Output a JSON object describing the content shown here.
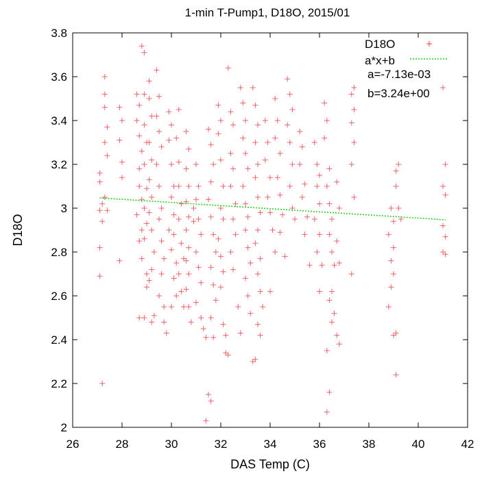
{
  "chart_data": {
    "type": "scatter",
    "title": "1-min T-Pump1, D18O, 2015/01",
    "xlabel": "DAS Temp (C)",
    "ylabel": "D18O",
    "xlim": [
      26,
      42
    ],
    "ylim": [
      2,
      3.8
    ],
    "xticks": [
      "26",
      "28",
      "30",
      "32",
      "34",
      "36",
      "38",
      "40",
      "42"
    ],
    "yticks": [
      "2",
      "2.2",
      "2.4",
      "2.6",
      "2.8",
      "3",
      "3.2",
      "3.4",
      "3.6",
      "3.8"
    ],
    "grid": false,
    "legend_position": "top-right",
    "series": [
      {
        "name": "D18O",
        "style": "points",
        "marker": "plus",
        "color": "#e8383d",
        "points": [
          [
            27.1,
            3.16
          ],
          [
            27.1,
            3.12
          ],
          [
            27.2,
            3.02
          ],
          [
            27.1,
            2.99
          ],
          [
            27.2,
            2.94
          ],
          [
            27.1,
            2.82
          ],
          [
            27.1,
            2.69
          ],
          [
            27.2,
            2.2
          ],
          [
            27.3,
            3.6
          ],
          [
            27.3,
            3.52
          ],
          [
            27.3,
            3.46
          ],
          [
            27.4,
            3.37
          ],
          [
            27.3,
            3.3
          ],
          [
            27.4,
            3.24
          ],
          [
            27.3,
            3.05
          ],
          [
            27.4,
            2.99
          ],
          [
            27.9,
            3.46
          ],
          [
            28.0,
            3.4
          ],
          [
            27.9,
            3.31
          ],
          [
            28.0,
            3.21
          ],
          [
            28.0,
            3.14
          ],
          [
            27.9,
            2.76
          ],
          [
            28.6,
            3.52
          ],
          [
            28.7,
            3.47
          ],
          [
            28.6,
            3.4
          ],
          [
            28.7,
            3.33
          ],
          [
            28.8,
            3.26
          ],
          [
            28.7,
            3.18
          ],
          [
            28.7,
            3.1
          ],
          [
            28.8,
            3.04
          ],
          [
            28.6,
            2.97
          ],
          [
            28.8,
            2.9
          ],
          [
            28.7,
            2.85
          ],
          [
            28.8,
            2.77
          ],
          [
            28.7,
            2.5
          ],
          [
            28.8,
            3.74
          ],
          [
            28.9,
            3.71
          ],
          [
            28.9,
            3.52
          ],
          [
            28.9,
            3.38
          ],
          [
            29.0,
            3.3
          ],
          [
            28.9,
            3.2
          ],
          [
            29.0,
            3.09
          ],
          [
            28.9,
            3.0
          ],
          [
            29.0,
            2.93
          ],
          [
            28.9,
            2.86
          ],
          [
            29.0,
            2.7
          ],
          [
            29.0,
            2.64
          ],
          [
            28.9,
            2.5
          ],
          [
            29.1,
            3.58
          ],
          [
            29.1,
            3.5
          ],
          [
            29.2,
            3.42
          ],
          [
            29.1,
            3.3
          ],
          [
            29.2,
            3.22
          ],
          [
            29.1,
            3.13
          ],
          [
            29.2,
            3.05
          ],
          [
            29.1,
            2.98
          ],
          [
            29.2,
            2.9
          ],
          [
            29.3,
            2.8
          ],
          [
            29.2,
            2.72
          ],
          [
            29.1,
            2.67
          ],
          [
            29.3,
            2.51
          ],
          [
            29.2,
            2.48
          ],
          [
            29.4,
            3.63
          ],
          [
            29.5,
            3.51
          ],
          [
            29.4,
            3.42
          ],
          [
            29.5,
            3.35
          ],
          [
            29.6,
            3.28
          ],
          [
            29.4,
            3.2
          ],
          [
            29.5,
            3.1
          ],
          [
            29.6,
            3.0
          ],
          [
            29.5,
            2.95
          ],
          [
            29.6,
            2.85
          ],
          [
            29.7,
            2.77
          ],
          [
            29.6,
            2.7
          ],
          [
            29.5,
            2.6
          ],
          [
            29.7,
            2.55
          ],
          [
            29.7,
            2.48
          ],
          [
            29.8,
            2.43
          ],
          [
            29.9,
            3.44
          ],
          [
            30.0,
            3.38
          ],
          [
            29.9,
            3.31
          ],
          [
            30.0,
            3.2
          ],
          [
            30.1,
            3.1
          ],
          [
            30.0,
            3.05
          ],
          [
            30.1,
            2.97
          ],
          [
            29.9,
            2.9
          ],
          [
            30.1,
            2.88
          ],
          [
            30.0,
            2.81
          ],
          [
            30.2,
            2.75
          ],
          [
            30.1,
            2.68
          ],
          [
            30.2,
            2.6
          ],
          [
            30.0,
            2.55
          ],
          [
            30.3,
            3.45
          ],
          [
            30.2,
            3.32
          ],
          [
            30.3,
            3.21
          ],
          [
            30.3,
            3.1
          ],
          [
            30.4,
            3.02
          ],
          [
            30.3,
            2.95
          ],
          [
            30.4,
            2.84
          ],
          [
            30.5,
            2.77
          ],
          [
            30.3,
            2.7
          ],
          [
            30.4,
            2.62
          ],
          [
            30.5,
            2.55
          ],
          [
            30.6,
            3.35
          ],
          [
            30.7,
            3.27
          ],
          [
            30.6,
            3.18
          ],
          [
            30.7,
            3.1
          ],
          [
            30.6,
            3.03
          ],
          [
            30.7,
            2.96
          ],
          [
            30.6,
            2.9
          ],
          [
            30.7,
            2.82
          ],
          [
            30.6,
            2.76
          ],
          [
            30.7,
            2.7
          ],
          [
            30.6,
            2.63
          ],
          [
            30.7,
            2.55
          ],
          [
            30.8,
            2.48
          ],
          [
            30.9,
            2.94
          ],
          [
            30.9,
            3.0
          ],
          [
            31.0,
            3.2
          ],
          [
            31.1,
            3.1
          ],
          [
            31.0,
            3.04
          ],
          [
            31.1,
            2.95
          ],
          [
            31.2,
            2.88
          ],
          [
            31.0,
            2.8
          ],
          [
            31.1,
            2.73
          ],
          [
            31.2,
            2.66
          ],
          [
            31.0,
            2.57
          ],
          [
            31.2,
            2.5
          ],
          [
            31.3,
            2.45
          ],
          [
            31.4,
            2.41
          ],
          [
            31.4,
            2.03
          ],
          [
            31.5,
            2.15
          ],
          [
            31.6,
            2.12
          ],
          [
            31.5,
            3.36
          ],
          [
            31.6,
            3.29
          ],
          [
            31.7,
            3.2
          ],
          [
            31.6,
            3.12
          ],
          [
            31.5,
            3.04
          ],
          [
            31.6,
            2.96
          ],
          [
            31.7,
            2.88
          ],
          [
            31.8,
            2.8
          ],
          [
            31.6,
            2.73
          ],
          [
            31.7,
            2.65
          ],
          [
            31.8,
            2.58
          ],
          [
            31.6,
            2.5
          ],
          [
            31.7,
            2.41
          ],
          [
            31.9,
            3.47
          ],
          [
            32.0,
            3.4
          ],
          [
            31.9,
            3.34
          ],
          [
            32.0,
            3.22
          ],
          [
            32.1,
            3.1
          ],
          [
            32.0,
            3.0
          ],
          [
            32.1,
            2.95
          ],
          [
            31.9,
            2.86
          ],
          [
            32.0,
            2.78
          ],
          [
            32.1,
            2.71
          ],
          [
            32.0,
            2.64
          ],
          [
            32.1,
            2.47
          ],
          [
            32.2,
            2.42
          ],
          [
            32.2,
            2.34
          ],
          [
            32.3,
            2.33
          ],
          [
            32.3,
            3.64
          ],
          [
            32.4,
            3.44
          ],
          [
            32.5,
            3.38
          ],
          [
            32.4,
            3.25
          ],
          [
            32.5,
            3.18
          ],
          [
            32.4,
            3.1
          ],
          [
            32.6,
            3.02
          ],
          [
            32.5,
            2.95
          ],
          [
            32.6,
            2.88
          ],
          [
            32.4,
            2.8
          ],
          [
            32.5,
            2.72
          ],
          [
            32.7,
            2.55
          ],
          [
            32.8,
            2.43
          ],
          [
            32.8,
            3.55
          ],
          [
            32.9,
            3.48
          ],
          [
            33.0,
            3.4
          ],
          [
            32.9,
            3.32
          ],
          [
            33.0,
            3.25
          ],
          [
            33.1,
            3.18
          ],
          [
            32.9,
            3.1
          ],
          [
            33.0,
            3.02
          ],
          [
            33.1,
            2.96
          ],
          [
            33.0,
            2.9
          ],
          [
            33.1,
            2.82
          ],
          [
            33.2,
            2.75
          ],
          [
            33.0,
            2.68
          ],
          [
            33.1,
            2.6
          ],
          [
            33.2,
            2.52
          ],
          [
            33.3,
            2.3
          ],
          [
            33.4,
            2.31
          ],
          [
            33.3,
            3.55
          ],
          [
            33.4,
            3.47
          ],
          [
            33.5,
            3.38
          ],
          [
            33.4,
            3.3
          ],
          [
            33.5,
            3.2
          ],
          [
            33.4,
            3.14
          ],
          [
            33.5,
            3.05
          ],
          [
            33.6,
            2.98
          ],
          [
            33.5,
            2.9
          ],
          [
            33.4,
            2.84
          ],
          [
            33.6,
            2.77
          ],
          [
            33.5,
            2.7
          ],
          [
            33.6,
            2.62
          ],
          [
            33.7,
            2.55
          ],
          [
            33.5,
            2.47
          ],
          [
            33.6,
            2.42
          ],
          [
            33.8,
            3.4
          ],
          [
            33.9,
            3.3
          ],
          [
            33.8,
            3.22
          ],
          [
            34.0,
            3.14
          ],
          [
            33.9,
            3.05
          ],
          [
            34.0,
            2.98
          ],
          [
            34.1,
            2.9
          ],
          [
            34.2,
            2.8
          ],
          [
            34.0,
            2.62
          ],
          [
            34.2,
            3.5
          ],
          [
            34.3,
            3.4
          ],
          [
            34.2,
            3.32
          ],
          [
            34.4,
            3.25
          ],
          [
            34.3,
            3.14
          ],
          [
            34.4,
            3.06
          ],
          [
            34.5,
            2.97
          ],
          [
            34.4,
            2.89
          ],
          [
            34.6,
            2.78
          ],
          [
            34.7,
            3.59
          ],
          [
            34.8,
            3.52
          ],
          [
            34.9,
            3.45
          ],
          [
            34.7,
            3.38
          ],
          [
            34.8,
            3.3
          ],
          [
            34.9,
            3.2
          ],
          [
            34.8,
            3.1
          ],
          [
            34.9,
            3.0
          ],
          [
            35.0,
            2.95
          ],
          [
            35.2,
            3.35
          ],
          [
            35.3,
            3.28
          ],
          [
            35.2,
            3.2
          ],
          [
            35.4,
            3.11
          ],
          [
            35.3,
            3.05
          ],
          [
            35.5,
            2.96
          ],
          [
            35.4,
            2.88
          ],
          [
            35.6,
            2.74
          ],
          [
            35.8,
            3.3
          ],
          [
            35.9,
            3.2
          ],
          [
            36.0,
            3.15
          ],
          [
            35.9,
            3.1
          ],
          [
            36.0,
            3.02
          ],
          [
            35.8,
            2.95
          ],
          [
            36.0,
            2.88
          ],
          [
            35.9,
            2.8
          ],
          [
            36.1,
            2.74
          ],
          [
            36.0,
            2.62
          ],
          [
            36.2,
            3.48
          ],
          [
            36.3,
            3.4
          ],
          [
            36.2,
            3.32
          ],
          [
            36.4,
            3.18
          ],
          [
            36.3,
            3.1
          ],
          [
            36.4,
            3.02
          ],
          [
            36.5,
            2.95
          ],
          [
            36.4,
            2.88
          ],
          [
            36.5,
            2.8
          ],
          [
            36.6,
            2.74
          ],
          [
            36.5,
            2.62
          ],
          [
            36.4,
            2.58
          ],
          [
            36.6,
            2.52
          ],
          [
            36.5,
            2.48
          ],
          [
            36.3,
            2.35
          ],
          [
            36.4,
            2.16
          ],
          [
            36.3,
            2.07
          ],
          [
            36.7,
            3.12
          ],
          [
            36.8,
            3.0
          ],
          [
            36.7,
            2.85
          ],
          [
            36.8,
            2.75
          ],
          [
            36.7,
            2.42
          ],
          [
            36.8,
            2.38
          ],
          [
            37.3,
            3.52
          ],
          [
            37.4,
            3.45
          ],
          [
            37.3,
            3.39
          ],
          [
            37.4,
            3.3
          ],
          [
            37.3,
            3.2
          ],
          [
            37.4,
            3.05
          ],
          [
            37.3,
            2.7
          ],
          [
            37.4,
            3.55
          ],
          [
            38.9,
            3.0
          ],
          [
            39.0,
            2.94
          ],
          [
            38.8,
            2.88
          ],
          [
            39.0,
            2.82
          ],
          [
            38.9,
            2.76
          ],
          [
            39.0,
            2.7
          ],
          [
            38.9,
            2.64
          ],
          [
            38.8,
            2.55
          ],
          [
            39.0,
            2.42
          ],
          [
            39.1,
            2.43
          ],
          [
            39.1,
            2.24
          ],
          [
            39.1,
            3.17
          ],
          [
            39.2,
            3.2
          ],
          [
            39.1,
            3.1
          ],
          [
            39.2,
            3.0
          ],
          [
            39.3,
            2.95
          ],
          [
            41.0,
            3.55
          ],
          [
            41.1,
            3.2
          ],
          [
            41.0,
            3.1
          ],
          [
            41.1,
            3.06
          ],
          [
            41.0,
            2.92
          ],
          [
            41.1,
            2.87
          ],
          [
            41.0,
            2.8
          ],
          [
            41.1,
            2.79
          ]
        ]
      },
      {
        "name": "a*x+b",
        "style": "line",
        "dash": "dotted",
        "color": "#22cc22",
        "a": -0.00713,
        "b": 3.24,
        "xrange": [
          27.1,
          41.1
        ]
      }
    ],
    "annotations": [
      "a=-7.13e-03",
      "b=3.24e+00"
    ]
  }
}
